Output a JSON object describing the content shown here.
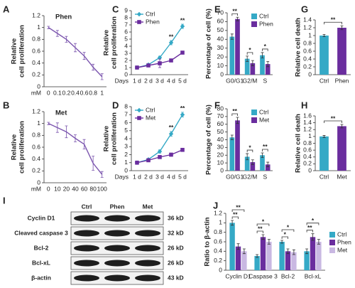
{
  "chart_data": [
    {
      "panel": "A",
      "type": "line",
      "title": "Phen",
      "xlabel": "mM",
      "ylabel": [
        "Relative",
        "cell proliferation"
      ],
      "categories": [
        "0",
        "0.1",
        "0.2",
        "0.4",
        "0.6",
        "0.8",
        "1"
      ],
      "values": [
        1,
        0.9,
        0.8,
        0.66,
        0.52,
        0.33,
        0.17
      ],
      "errors": [
        0.02,
        0.05,
        0.05,
        0.07,
        0.06,
        0.05,
        0.05
      ],
      "color": "#7b55ae",
      "ylim": [
        0,
        1.2
      ],
      "yticks": [
        0,
        0.2,
        0.4,
        0.6,
        0.8,
        1,
        1.2
      ]
    },
    {
      "panel": "C",
      "type": "line",
      "xlabel": "Days",
      "ylabel": [
        "Relative",
        "cell proliferation"
      ],
      "categories": [
        "1 d",
        "2 d",
        "3 d",
        "4 d",
        "5 d"
      ],
      "series": [
        {
          "name": "Ctrl",
          "color": "#35a9c6",
          "marker": "diamond",
          "values": [
            1,
            1.4,
            2.4,
            4.5,
            6.8
          ],
          "errors": [
            0.05,
            0.1,
            0.2,
            0.3,
            0.3
          ]
        },
        {
          "name": "Phen",
          "color": "#6a2d9e",
          "marker": "square",
          "values": [
            1,
            1.3,
            1.6,
            2,
            3.1
          ],
          "errors": [
            0.05,
            0.1,
            0.6,
            0.2,
            0.1
          ]
        }
      ],
      "ylim": [
        0,
        9
      ],
      "yticks": [
        0,
        1,
        2,
        3,
        4,
        5,
        6,
        7,
        8,
        9
      ],
      "legend": "upper left",
      "annotations": [
        "**",
        "**"
      ]
    },
    {
      "panel": "E",
      "type": "bar",
      "ylabel": [
        "Percentage of cell (%)"
      ],
      "categories": [
        "G0/G1",
        "G2/M",
        "S"
      ],
      "series": [
        {
          "name": "Ctrl",
          "color": "#35a9c6",
          "values": [
            43,
            18,
            22
          ],
          "errors": [
            3,
            3,
            3
          ]
        },
        {
          "name": "Phen",
          "color": "#6a2d9e",
          "values": [
            63,
            13,
            12
          ],
          "errors": [
            2,
            3,
            3
          ]
        }
      ],
      "ylim": [
        0,
        70
      ],
      "yticks": [
        0,
        10,
        20,
        30,
        40,
        50,
        60,
        70
      ],
      "legend": "upper right",
      "annotations": [
        "**",
        "*",
        "*"
      ]
    },
    {
      "panel": "G",
      "type": "bar",
      "ylabel": [
        "Relative cell death"
      ],
      "categories": [
        "Ctrl",
        "Phen"
      ],
      "values": [
        1,
        1.2
      ],
      "errors": [
        0.03,
        0.05
      ],
      "colors": [
        "#35a9c6",
        "#6a2d9e"
      ],
      "ylim": [
        0,
        1.4
      ],
      "yticks": [
        0,
        0.2,
        0.4,
        0.6,
        0.8,
        1,
        1.2,
        1.4
      ],
      "annotations": [
        "**"
      ]
    },
    {
      "panel": "B",
      "type": "line",
      "title": "Met",
      "xlabel": "mM",
      "ylabel": [
        "Relative",
        "cell proliferation"
      ],
      "categories": [
        "0",
        "10",
        "20",
        "40",
        "60",
        "80",
        "100"
      ],
      "values": [
        1,
        0.93,
        0.86,
        0.75,
        0.65,
        0.33,
        0.14
      ],
      "errors": [
        0.02,
        0.08,
        0.1,
        0.06,
        0.08,
        0.12,
        0.05
      ],
      "color": "#7b55ae",
      "ylim": [
        0,
        1.2
      ],
      "yticks": [
        0,
        0.2,
        0.4,
        0.6,
        0.8,
        1,
        1.2
      ]
    },
    {
      "panel": "D",
      "type": "line",
      "xlabel": "Days",
      "ylabel": [
        "Relative",
        "cell proliferation"
      ],
      "categories": [
        "1 d",
        "2 d",
        "3 d",
        "4 d",
        "5 d"
      ],
      "series": [
        {
          "name": "Ctrl",
          "color": "#35a9c6",
          "marker": "diamond",
          "values": [
            1,
            1.4,
            2.4,
            4.6,
            7
          ],
          "errors": [
            0.05,
            0.1,
            0.2,
            0.3,
            0.3
          ]
        },
        {
          "name": "Met",
          "color": "#6a2d9e",
          "marker": "square",
          "values": [
            1,
            1.3,
            1.7,
            2,
            2.6
          ],
          "errors": [
            0.05,
            0.1,
            0.2,
            0.2,
            0.1
          ]
        }
      ],
      "ylim": [
        0,
        8
      ],
      "yticks": [
        0,
        1,
        2,
        3,
        4,
        5,
        6,
        7,
        8
      ],
      "legend": "upper left",
      "annotations": [
        "**",
        "**"
      ]
    },
    {
      "panel": "F",
      "type": "bar",
      "ylabel": [
        "Percentage of cell (%)"
      ],
      "categories": [
        "G0/G1",
        "G2/M",
        "S"
      ],
      "series": [
        {
          "name": "Ctrl",
          "color": "#35a9c6",
          "values": [
            43,
            18,
            20
          ],
          "errors": [
            3,
            4,
            3
          ]
        },
        {
          "name": "Met",
          "color": "#6a2d9e",
          "values": [
            65,
            11,
            8
          ],
          "errors": [
            4,
            3,
            3
          ]
        }
      ],
      "ylim": [
        0,
        80
      ],
      "yticks": [
        0,
        10,
        20,
        30,
        40,
        50,
        60,
        70,
        80
      ],
      "legend": "upper right",
      "annotations": [
        "**",
        "*",
        "**"
      ]
    },
    {
      "panel": "H",
      "type": "bar",
      "ylabel": [
        "Relative cell death"
      ],
      "categories": [
        "Ctrl",
        "Met"
      ],
      "values": [
        1,
        1.3
      ],
      "errors": [
        0.03,
        0.05
      ],
      "colors": [
        "#35a9c6",
        "#6a2d9e"
      ],
      "ylim": [
        0,
        1.6
      ],
      "yticks": [
        0,
        0.2,
        0.4,
        0.6,
        0.8,
        1,
        1.2,
        1.4,
        1.6
      ],
      "annotations": [
        "**"
      ]
    },
    {
      "panel": "J",
      "type": "bar",
      "ylabel": [
        "Ratio to β-actin"
      ],
      "categories": [
        "Cyclin D1",
        "Caspase 3",
        "Bcl-2",
        "Bcl-xL"
      ],
      "series": [
        {
          "name": "Ctrl",
          "color": "#35a9c6",
          "values": [
            1,
            0.3,
            0.6,
            0.4
          ],
          "errors": [
            0.05,
            0.03,
            0.03,
            0.05
          ]
        },
        {
          "name": "Phen",
          "color": "#6a2d9e",
          "values": [
            0.5,
            0.7,
            0.4,
            0.7
          ],
          "errors": [
            0.06,
            0.05,
            0.05,
            0.07
          ]
        },
        {
          "name": "Met",
          "color": "#c9b8e2",
          "values": [
            0.4,
            0.6,
            0.38,
            0.6
          ],
          "errors": [
            0.05,
            0.05,
            0.05,
            0.05
          ]
        }
      ],
      "ylim": [
        0,
        1.2
      ],
      "yticks": [
        0,
        0.2,
        0.4,
        0.6,
        0.8,
        1,
        1.2
      ],
      "legend": "right",
      "annotations": [
        "**",
        "**",
        "**",
        "*",
        "*",
        "*",
        "**",
        "*"
      ]
    }
  ],
  "blot": {
    "panel": "I",
    "lanes": [
      "Ctrl",
      "Phen",
      "Met"
    ],
    "rows": [
      {
        "label": "Cyclin D1",
        "size": "36 kD"
      },
      {
        "label": "Cleaved caspase 3",
        "size": "32 kD"
      },
      {
        "label": "Bcl-2",
        "size": "26 kD"
      },
      {
        "label": "Bcl-xL",
        "size": "26 kD"
      },
      {
        "label": "β-actin",
        "size": "43 kD"
      }
    ]
  }
}
